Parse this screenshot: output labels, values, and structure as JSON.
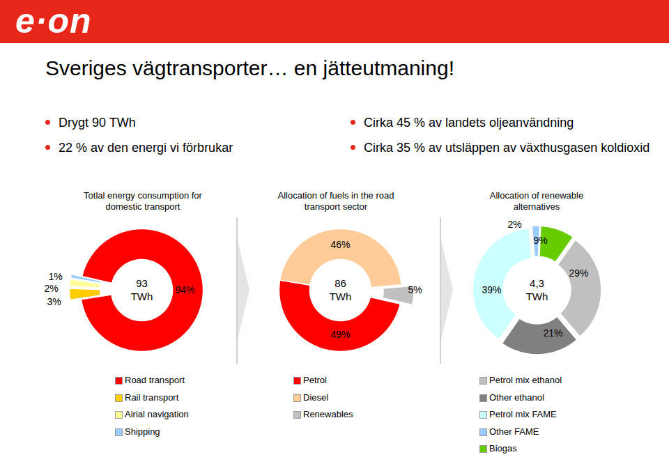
{
  "slide": {
    "logo": "e·on",
    "title": "Sveriges vägtransporter… en jätteutmaning!",
    "bullets_left": [
      "Drygt 90 TWh",
      "22 % av den energi vi förbrukar"
    ],
    "bullets_right": [
      "Cirka 45 % av landets oljeanvändning",
      "Cirka 35 % av utsläppen av växthusgasen koldioxid"
    ]
  },
  "chart_data": [
    {
      "type": "pie",
      "title": "Totlal energy consumption for domestic transport",
      "center_label": "93 TWh",
      "categories": [
        "Road transport",
        "Rail transport",
        "Airial navigation",
        "Shipping"
      ],
      "values": [
        94,
        3,
        2,
        1
      ],
      "value_labels": [
        "94%",
        "3%",
        "2%",
        "1%"
      ],
      "colors": [
        "#ff0000",
        "#ffcc00",
        "#ffff99",
        "#99ccff"
      ],
      "data_labels": true,
      "tick_labels": false,
      "legend": "bottom"
    },
    {
      "type": "pie",
      "title": "Allocation of fuels in the road transport sector",
      "center_label": "86 TWh",
      "categories": [
        "Petrol",
        "Diesel",
        "Renewables"
      ],
      "values": [
        49,
        46,
        5
      ],
      "value_labels": [
        "49%",
        "46%",
        "5%"
      ],
      "colors": [
        "#ff0000",
        "#ffcc99",
        "#c0c0c0"
      ],
      "data_labels": true,
      "tick_labels": false,
      "legend": "bottom"
    },
    {
      "type": "pie",
      "title": "Allocation of renewable alternatives",
      "center_label": "4,3 TWh",
      "categories": [
        "Petrol mix ethanol",
        "Other ethanol",
        "Petrol mix FAME",
        "Other FAME",
        "Biogas"
      ],
      "values": [
        29,
        21,
        39,
        2,
        9
      ],
      "value_labels": [
        "29%",
        "21%",
        "39%",
        "2%",
        "9%"
      ],
      "colors": [
        "#c0c0c0",
        "#808080",
        "#ccffff",
        "#99ccff",
        "#66cc00"
      ],
      "data_labels": true,
      "tick_labels": false,
      "legend": "bottom"
    }
  ]
}
